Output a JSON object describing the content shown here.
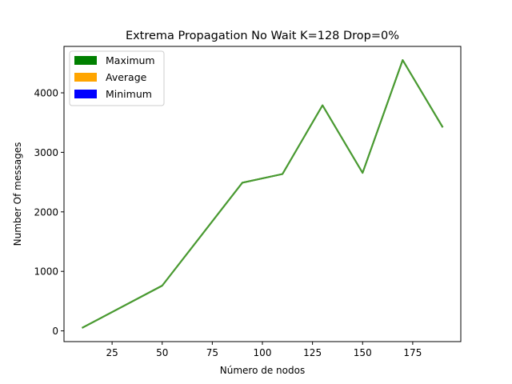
{
  "chart_data": {
    "type": "line",
    "title": "Extrema Propagation No Wait K=128 Drop=0%",
    "xlabel": "Número de nodos",
    "ylabel": "Number Of messages",
    "xlim": [
      1,
      199
    ],
    "ylim": [
      -180,
      4780
    ],
    "xticks": [
      25,
      50,
      75,
      100,
      125,
      150,
      175
    ],
    "yticks": [
      0,
      1000,
      2000,
      3000,
      4000
    ],
    "grid": false,
    "legend_position": "top-left",
    "x": [
      10,
      50,
      90,
      110,
      130,
      150,
      170,
      190
    ],
    "series": [
      {
        "name": "Maximum",
        "color": "#008000",
        "values": [
          50,
          760,
          2490,
          2635,
          3790,
          2655,
          4550,
          3420
        ]
      },
      {
        "name": "Average",
        "color": "#FFA500",
        "values": [
          50,
          760,
          2490,
          2635,
          3790,
          2655,
          4550,
          3420
        ]
      },
      {
        "name": "Minimum",
        "color": "#0000FF",
        "values": [
          50,
          760,
          2490,
          2635,
          3790,
          2655,
          4550,
          3420
        ]
      }
    ],
    "plotted_line_color": "#4a9a32"
  }
}
